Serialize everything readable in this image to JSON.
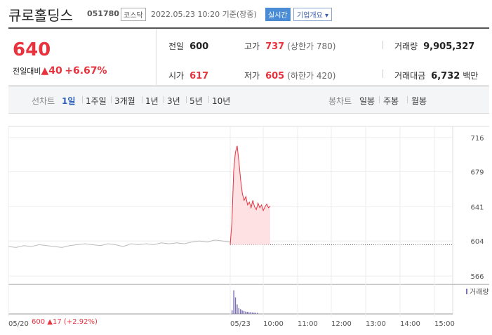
{
  "header": {
    "name": "큐로홀딩스",
    "code": "051780",
    "market": "코스닥",
    "timestamp": "2022.05.23 10:20 기준(장중)",
    "realtime": "실시간",
    "company_button": "기업개요"
  },
  "quote": {
    "price": "640",
    "change_label": "전일대비",
    "change": "40",
    "change_pct": "+6.67%",
    "items": [
      {
        "label": "전일",
        "value": "600"
      },
      {
        "label": "고가",
        "value": "737",
        "note": "(상한가 780)"
      },
      {
        "label": "거래량",
        "value": "9,905,327"
      },
      {
        "label": "시가",
        "value": "617"
      },
      {
        "label": "저가",
        "value": "605",
        "note": "(하한가 420)"
      },
      {
        "label": "거래대금",
        "value": "6,732",
        "unit": "백만"
      }
    ]
  },
  "tabs": {
    "line_label": "선차트",
    "line": [
      "1일",
      "1주일",
      "3개월",
      "1년",
      "3년",
      "5년",
      "10년"
    ],
    "candle_label": "봉차트",
    "candle": [
      "일봉",
      "주봉",
      "월봉"
    ]
  },
  "chart": {
    "type": "line",
    "ylim": [
      557,
      728
    ],
    "yticks": [
      716,
      679,
      641,
      604,
      566
    ],
    "baseline": 600,
    "xlabels": [
      "05/20",
      "05/23",
      "10:00",
      "11:00",
      "12:00",
      "13:00",
      "14:00",
      "15:00"
    ],
    "previous": {
      "color": "#bbbbbb",
      "values": [
        598,
        597,
        599,
        598,
        600,
        599,
        598,
        597,
        599,
        600,
        601,
        600,
        599,
        601,
        600,
        598,
        601,
        600,
        601,
        600,
        602,
        601,
        602,
        601,
        603,
        604,
        603,
        605,
        604,
        603
      ]
    },
    "today": {
      "color": "#e8333e",
      "values": [
        600,
        625,
        680,
        700,
        707,
        690,
        670,
        655,
        648,
        652,
        643,
        646,
        640,
        648,
        641,
        638,
        645,
        640,
        643,
        637,
        641,
        644,
        640,
        642
      ]
    },
    "volume": {
      "name": "거래량",
      "color": "#7a6fb5",
      "ylim": [
        0,
        2200000
      ],
      "values": [
        300000,
        2000000,
        1400000,
        800000,
        500000,
        400000,
        300000,
        250000,
        200000,
        180000,
        150000,
        150000,
        120000,
        100000,
        100000,
        90000
      ]
    }
  },
  "footer": {
    "close": "600",
    "change": "17",
    "change_pct": "(+2.92%)"
  }
}
